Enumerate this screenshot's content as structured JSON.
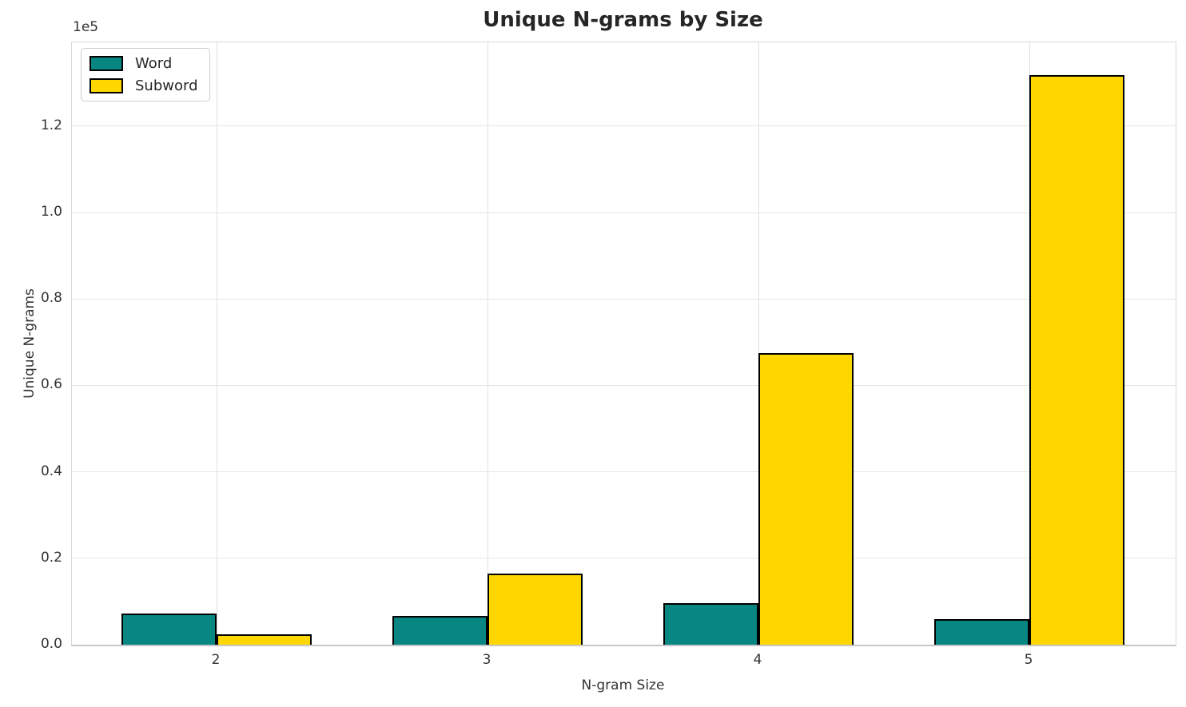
{
  "chart_data": {
    "type": "bar",
    "title": "Unique N-grams by Size",
    "xlabel": "N-gram Size",
    "ylabel": "Unique N-grams",
    "y_offset_label": "1e5",
    "categories": [
      "2",
      "3",
      "4",
      "5"
    ],
    "series": [
      {
        "name": "Word",
        "color": "#078682",
        "values": [
          7200,
          6700,
          9600,
          6000
        ]
      },
      {
        "name": "Subword",
        "color": "#FFD700",
        "values": [
          2400,
          16500,
          67400,
          131900
        ]
      }
    ],
    "bar_edge_color": "#000000",
    "ylim": [
      0,
      139400
    ],
    "yticks": [
      0,
      20000,
      40000,
      60000,
      80000,
      100000,
      120000
    ],
    "ytick_labels": [
      "0.0",
      "0.2",
      "0.4",
      "0.6",
      "0.8",
      "1.0",
      "1.2"
    ],
    "grid": true,
    "legend_position": "upper left"
  }
}
